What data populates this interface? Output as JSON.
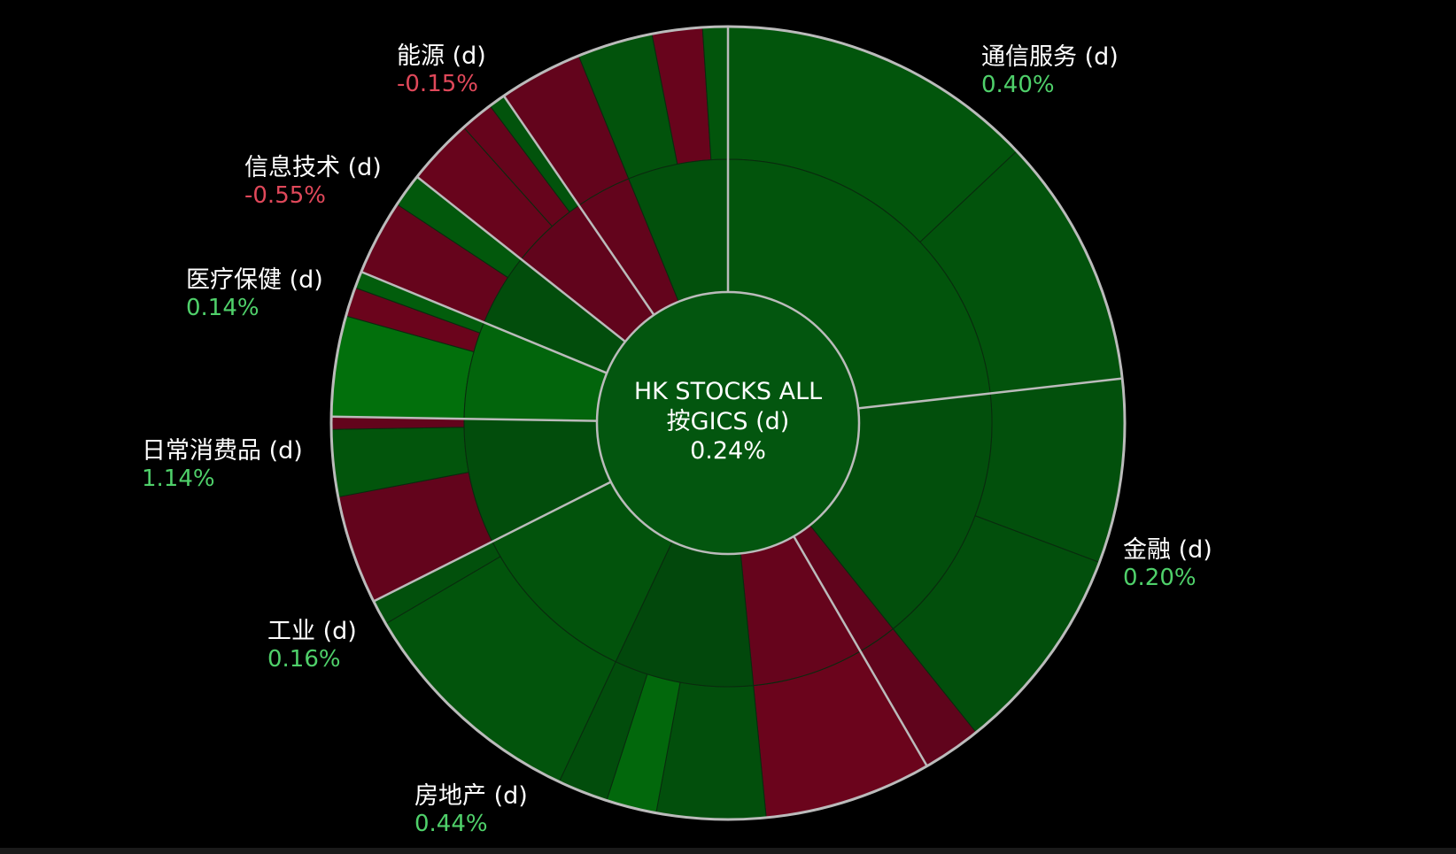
{
  "chart_data": {
    "type": "sunburst",
    "center": {
      "title_line1": "HK STOCKS ALL",
      "title_line2": "按GICS (d)",
      "value": "0.24%"
    },
    "colors": {
      "positive_label": "#4fd06a",
      "negative_label": "#e0485a"
    },
    "sectors": [
      {
        "name": "通信服务 (d)",
        "change": "0.40%",
        "label_side": "right",
        "industries": [
          {
            "weight": 68,
            "change": 0.45,
            "stocks": [
              {
                "weight": 38,
                "change": 0.5
              },
              {
                "weight": 30,
                "change": 0.4
              }
            ]
          }
        ]
      },
      {
        "name": "金融 (d)",
        "change": "0.20%",
        "label_side": "right",
        "industries": [
          {
            "weight": 47,
            "change": 0.25,
            "stocks": [
              {
                "weight": 22,
                "change": 0.3
              },
              {
                "weight": 25,
                "change": 0.25
              }
            ]
          },
          {
            "weight": 7,
            "change": -0.5,
            "stocks": [
              {
                "weight": 7,
                "change": -0.5
              }
            ]
          }
        ]
      },
      {
        "name": "房地产 (d)",
        "change": "0.44%",
        "label_side": "left",
        "industries": [
          {
            "weight": 36,
            "change": -0.7,
            "stocks": [
              {
                "weight": 20,
                "change": -0.9
              }
            ]
          },
          {
            "weight": 0,
            "change": 0,
            "stocks": [
              {
                "weight": 13,
                "change": 0.25
              },
              {
                "weight": 6,
                "change": 1.2
              },
              {
                "weight": 6,
                "change": 0.2
              }
            ]
          },
          {
            "weight": 31,
            "change": 0.4,
            "stocks": [
              {
                "weight": 28,
                "change": 0.45
              },
              {
                "weight": 3,
                "change": 0.3
              }
            ]
          }
        ]
      },
      {
        "name": "工业 (d)",
        "change": "0.16%",
        "label_side": "left",
        "industries": [
          {
            "weight": 24,
            "change": 0.2,
            "stocks": [
              {
                "weight": 13,
                "change": -0.6
              },
              {
                "weight": 8,
                "change": 0.5
              },
              {
                "weight": 1.5,
                "change": -0.6
              }
            ]
          }
        ]
      },
      {
        "name": "日常消费品 (d)",
        "change": "1.14%",
        "label_side": "left",
        "industries": [
          {
            "weight": 19,
            "change": 1.1,
            "stocks": [
              {
                "weight": 12,
                "change": 1.5
              },
              {
                "weight": 3.5,
                "change": -0.9
              },
              {
                "weight": 2,
                "change": 0.8
              }
            ]
          }
        ]
      },
      {
        "name": "医疗保健 (d)",
        "change": "0.14%",
        "label_side": "left",
        "industries": [
          {
            "weight": 13,
            "change": 0.2,
            "stocks": [
              {
                "weight": 9,
                "change": -0.7
              },
              {
                "weight": 4,
                "change": 0.6
              }
            ]
          }
        ]
      },
      {
        "name": "信息技术 (d)",
        "change": "-0.55%",
        "label_side": "left",
        "industries": [
          {
            "weight": 20,
            "change": -0.55,
            "stocks": [
              {
                "weight": 8,
                "change": -0.8
              },
              {
                "weight": 4,
                "change": -0.7
              },
              {
                "weight": 2,
                "change": 0.4
              }
            ]
          }
        ]
      },
      {
        "name": "能源 (d)",
        "change": "-0.15%",
        "label_side": "left",
        "industries": [
          {
            "weight": 12,
            "change": -0.6,
            "stocks": [
              {
                "weight": 10,
                "change": -0.6
              }
            ]
          },
          {
            "weight": 14,
            "change": 0.3,
            "stocks": [
              {
                "weight": 9,
                "change": 0.4
              },
              {
                "weight": 6,
                "change": -0.8
              },
              {
                "weight": 3,
                "change": 0.5
              }
            ]
          }
        ]
      }
    ]
  }
}
